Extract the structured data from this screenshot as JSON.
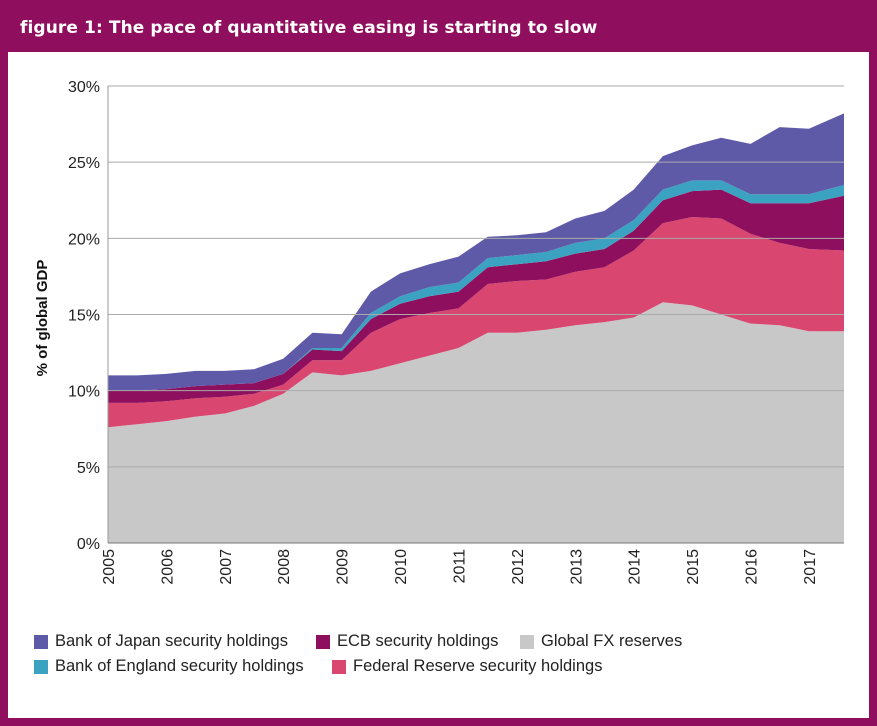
{
  "title": "figure 1: The pace of quantitative easing is starting to slow",
  "colors": {
    "frame": "#8f0e5e",
    "boj": "#5e5aa8",
    "boe": "#3ba3c1",
    "ecb": "#8d0f5e",
    "fed": "#d9466f",
    "fx": "#c8c8c8",
    "grid": "#aaaaaa"
  },
  "chart_data": {
    "type": "area",
    "stacked": true,
    "title": "figure 1: The pace of quantitative easing is starting to slow",
    "ylabel": "% of global GDP",
    "xlabel": "",
    "ylim": [
      0,
      30
    ],
    "xlim": [
      2005,
      2017.6
    ],
    "y_ticks": [
      "0%",
      "5%",
      "10%",
      "15%",
      "20%",
      "25%",
      "30%"
    ],
    "x_ticks": [
      "2005",
      "2006",
      "2007",
      "2008",
      "2009",
      "2010",
      "2011",
      "2012",
      "2013",
      "2014",
      "2015",
      "2016",
      "2017"
    ],
    "grid": true,
    "legend_position": "bottom",
    "x": [
      2005.0,
      2005.5,
      2006.0,
      2006.5,
      2007.0,
      2007.5,
      2008.0,
      2008.5,
      2009.0,
      2009.5,
      2010.0,
      2010.5,
      2011.0,
      2011.5,
      2012.0,
      2012.5,
      2013.0,
      2013.5,
      2014.0,
      2014.5,
      2015.0,
      2015.5,
      2016.0,
      2016.5,
      2017.0,
      2017.6
    ],
    "series": [
      {
        "name": "Global FX reserves",
        "color_key": "fx",
        "values": [
          7.6,
          7.8,
          8.0,
          8.3,
          8.5,
          9.0,
          9.8,
          11.2,
          11.0,
          11.3,
          11.8,
          12.3,
          12.8,
          13.8,
          13.8,
          14.0,
          14.3,
          14.5,
          14.8,
          15.8,
          15.6,
          15.0,
          14.4,
          14.3,
          13.9,
          13.9
        ]
      },
      {
        "name": "Federal Reserve security holdings",
        "color_key": "fed",
        "values": [
          1.6,
          1.4,
          1.3,
          1.2,
          1.1,
          0.8,
          0.6,
          0.8,
          1.0,
          2.5,
          2.9,
          2.8,
          2.6,
          3.2,
          3.4,
          3.3,
          3.5,
          3.6,
          4.4,
          5.2,
          5.8,
          6.3,
          5.9,
          5.4,
          5.4,
          5.3
        ]
      },
      {
        "name": "ECB security holdings",
        "color_key": "ecb",
        "values": [
          0.8,
          0.8,
          0.8,
          0.8,
          0.8,
          0.7,
          0.7,
          0.7,
          0.6,
          0.9,
          1.0,
          1.1,
          1.1,
          1.1,
          1.1,
          1.2,
          1.2,
          1.2,
          1.3,
          1.5,
          1.7,
          1.9,
          2.0,
          2.6,
          3.0,
          3.6
        ]
      },
      {
        "name": "Bank of England security holdings",
        "color_key": "boe",
        "values": [
          0.0,
          0.0,
          0.0,
          0.0,
          0.0,
          0.0,
          0.0,
          0.1,
          0.2,
          0.4,
          0.5,
          0.6,
          0.6,
          0.6,
          0.6,
          0.6,
          0.7,
          0.7,
          0.7,
          0.7,
          0.7,
          0.6,
          0.6,
          0.6,
          0.6,
          0.7
        ]
      },
      {
        "name": "Bank of Japan security holdings",
        "color_key": "boj",
        "values": [
          1.0,
          1.0,
          1.0,
          1.0,
          0.9,
          0.9,
          1.0,
          1.0,
          0.9,
          1.4,
          1.5,
          1.5,
          1.7,
          1.4,
          1.3,
          1.3,
          1.6,
          1.8,
          2.0,
          2.2,
          2.3,
          2.8,
          3.3,
          4.4,
          4.3,
          4.7
        ]
      }
    ]
  },
  "legend": {
    "boj": "Bank of Japan security holdings",
    "ecb": "ECB security holdings",
    "fx": "Global FX reserves",
    "boe": "Bank of England security holdings",
    "fed": "Federal Reserve security holdings"
  }
}
